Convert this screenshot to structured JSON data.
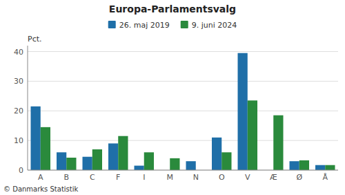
{
  "chart_data": {
    "type": "bar",
    "title": "Europa-Parlamentsvalg",
    "categories": [
      "A",
      "B",
      "C",
      "F",
      "I",
      "M",
      "N",
      "O",
      "V",
      "Æ",
      "Ø",
      "Å"
    ],
    "series": [
      {
        "name": "26. maj 2019",
        "color": "#1f6fa8",
        "values": [
          21.5,
          6.0,
          4.5,
          9.0,
          1.5,
          0.0,
          3.0,
          11.0,
          39.5,
          0.0,
          3.0,
          1.7
        ]
      },
      {
        "name": "9. juni 2024",
        "color": "#2a8a3c",
        "values": [
          14.5,
          4.2,
          7.0,
          11.5,
          6.0,
          4.0,
          0.0,
          6.0,
          23.5,
          18.5,
          3.3,
          1.7
        ]
      }
    ],
    "ylabel": "Pct.",
    "ylim": [
      0,
      42
    ],
    "yticks": [
      0,
      10,
      20,
      30,
      40
    ],
    "grid": true,
    "legend": "top",
    "annotations": [
      "© Danmarks Statistik"
    ]
  }
}
